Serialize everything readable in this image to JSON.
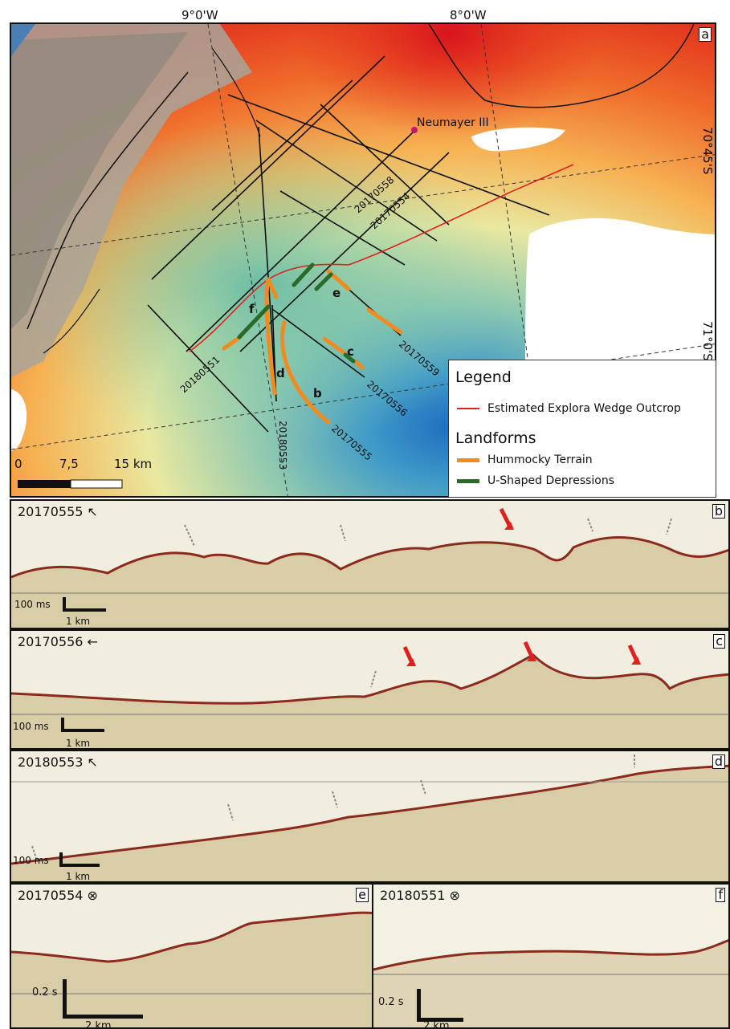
{
  "map": {
    "panel_label": "a",
    "longitudes": [
      "9°0'W",
      "8°0'W"
    ],
    "latitudes": [
      "70°45'S",
      "71°0'S"
    ],
    "station": "Neumayer III",
    "line_ids": [
      "20170558",
      "20170554",
      "20170559",
      "20170556",
      "20170555",
      "20180551",
      "20180553"
    ],
    "segment_letters": [
      "b",
      "c",
      "d",
      "e",
      "f"
    ],
    "scalebar": {
      "ticks": [
        "0",
        "7,5",
        "15 km"
      ]
    },
    "legend": {
      "title": "Legend",
      "items": [
        {
          "label": "Estimated Explora Wedge Outcrop",
          "color": "#e0201e"
        }
      ],
      "landforms_title": "Landforms",
      "landforms": [
        {
          "label": "Hummocky Terrain",
          "color": "#f28a1e"
        },
        {
          "label": "U-Shaped Depressions",
          "color": "#2a6b2a"
        }
      ]
    }
  },
  "profiles": [
    {
      "id": "20170555",
      "label": "b",
      "direction": "arrow-up-left",
      "direction_glyph": "↖",
      "time_scale": "100 ms",
      "dist_scale": "1 km"
    },
    {
      "id": "20170556",
      "label": "c",
      "direction": "arrow-left",
      "direction_glyph": "←",
      "time_scale": "100 ms",
      "dist_scale": "1 km"
    },
    {
      "id": "20180553",
      "label": "d",
      "direction": "arrow-up-left",
      "direction_glyph": "↖",
      "time_scale": "100 ms",
      "dist_scale": "1 km"
    },
    {
      "id": "20170554",
      "label": "e",
      "direction": "into-page",
      "direction_glyph": "⊗",
      "time_scale": "0.2 s",
      "dist_scale": "2 km"
    },
    {
      "id": "20180551",
      "label": "f",
      "direction": "into-page",
      "direction_glyph": "⊗",
      "time_scale": "0.2 s",
      "dist_scale": "2 km"
    }
  ],
  "colors": {
    "red_arrow": "#e02020",
    "grey_arrow": "#8a8a8a",
    "hummocky": "#f28a1e",
    "ushape": "#2a6b2a",
    "outcrop": "#e0201e"
  }
}
